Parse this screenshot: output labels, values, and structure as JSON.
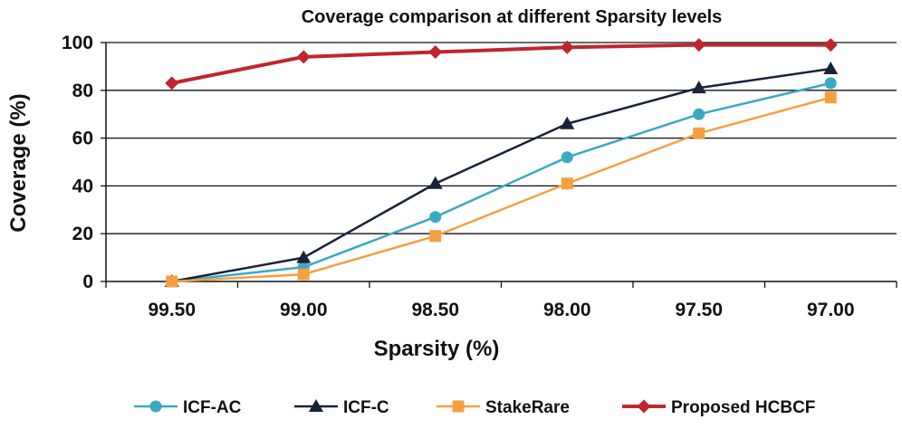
{
  "chart_data": {
    "type": "line",
    "title": "Coverage comparison at different Sparsity levels",
    "xlabel": "Sparsity (%)",
    "ylabel": "Coverage (%)",
    "categories": [
      "99.50",
      "99.00",
      "98.50",
      "98.00",
      "97.50",
      "97.00"
    ],
    "ylim": [
      0,
      100
    ],
    "yticks": [
      0,
      20,
      40,
      60,
      80,
      100
    ],
    "grid": "horizontal",
    "legend_position": "bottom",
    "series": [
      {
        "name": "ICF-AC",
        "color": "#3ba8c4",
        "marker": "circle",
        "values": [
          0,
          6,
          27,
          52,
          70,
          83
        ]
      },
      {
        "name": "ICF-C",
        "color": "#17233a",
        "marker": "triangle",
        "values": [
          0,
          10,
          41,
          66,
          81,
          89
        ]
      },
      {
        "name": "StakeRare",
        "color": "#f4a040",
        "marker": "square",
        "values": [
          0,
          3,
          19,
          41,
          62,
          77
        ]
      },
      {
        "name": "Proposed HCBCF",
        "color": "#c0262d",
        "marker": "diamond",
        "values": [
          83,
          94,
          96,
          98,
          99,
          99
        ]
      }
    ]
  }
}
